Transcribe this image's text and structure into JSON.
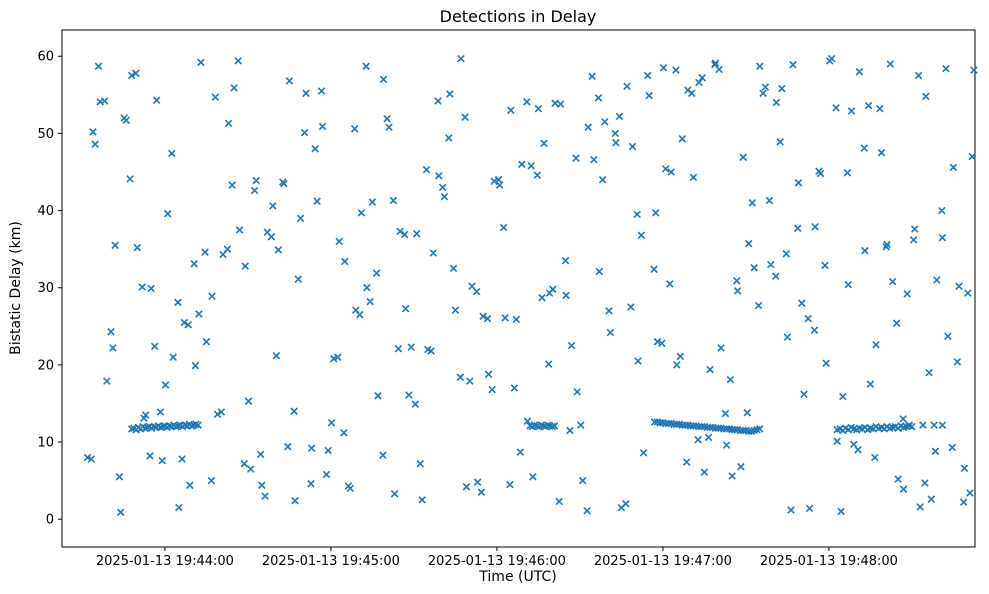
{
  "chart_data": {
    "type": "scatter",
    "title": "Detections in Delay",
    "xlabel": "Time (UTC)",
    "ylabel": "Bistatic Delay (km)",
    "marker": "x",
    "marker_color": "#1f77b4",
    "grid": false,
    "legend": "none",
    "x_units": "seconds after 2025-01-13 19:43:00 UTC",
    "xlim": [
      22.8,
      352.8
    ],
    "ylim": [
      -3.6,
      63.4
    ],
    "xticks": [
      {
        "t": 60,
        "label": "2025-01-13 19:44:00"
      },
      {
        "t": 120,
        "label": "2025-01-13 19:45:00"
      },
      {
        "t": 180,
        "label": "2025-01-13 19:46:00"
      },
      {
        "t": 240,
        "label": "2025-01-13 19:47:00"
      },
      {
        "t": 300,
        "label": "2025-01-13 19:48:00"
      }
    ],
    "yticks": [
      0,
      10,
      20,
      30,
      40,
      50,
      60
    ],
    "points": [
      [
        32,
        8
      ],
      [
        33.4,
        7.8
      ],
      [
        34,
        50.2
      ],
      [
        34.8,
        48.6
      ],
      [
        36,
        58.7
      ],
      [
        36.6,
        54.1
      ],
      [
        38.2,
        54.2
      ],
      [
        39,
        17.9
      ],
      [
        40.5,
        24.3
      ],
      [
        41.2,
        22.2
      ],
      [
        42,
        35.5
      ],
      [
        43.6,
        5.5
      ],
      [
        44,
        0.9
      ],
      [
        45.3,
        52
      ],
      [
        46,
        51.7
      ],
      [
        47.4,
        44.1
      ],
      [
        48,
        57.5
      ],
      [
        49.5,
        57.8
      ],
      [
        50,
        35.2
      ],
      [
        51.8,
        30.1
      ],
      [
        52.4,
        13.1
      ],
      [
        53,
        13.5
      ],
      [
        54.6,
        8.2
      ],
      [
        55,
        29.9
      ],
      [
        56.3,
        22.4
      ],
      [
        57,
        54.3
      ],
      [
        58.4,
        13.9
      ],
      [
        59,
        7.6
      ],
      [
        60.2,
        17.4
      ],
      [
        61,
        39.6
      ],
      [
        62.5,
        47.4
      ],
      [
        63,
        21
      ],
      [
        64.7,
        28.1
      ],
      [
        65,
        1.5
      ],
      [
        66.2,
        7.8
      ],
      [
        67,
        25.5
      ],
      [
        68.4,
        25.2
      ],
      [
        69,
        4.4
      ],
      [
        70.6,
        33.1
      ],
      [
        71,
        19.9
      ],
      [
        72.3,
        26.6
      ],
      [
        73,
        59.2
      ],
      [
        74.5,
        34.6
      ],
      [
        75,
        23
      ],
      [
        76.8,
        5
      ],
      [
        77,
        28.9
      ],
      [
        78.2,
        54.7
      ],
      [
        79,
        13.6
      ],
      [
        80.4,
        13.9
      ],
      [
        81,
        34.3
      ],
      [
        82.6,
        35
      ],
      [
        83,
        51.3
      ],
      [
        84.3,
        43.3
      ],
      [
        85,
        55.9
      ],
      [
        86.5,
        59.4
      ],
      [
        87,
        37.5
      ],
      [
        88.7,
        7.2
      ],
      [
        89,
        32.8
      ],
      [
        90.2,
        15.3
      ],
      [
        91,
        6.5
      ],
      [
        92.4,
        42.6
      ],
      [
        93,
        43.9
      ],
      [
        94.6,
        8.4
      ],
      [
        95,
        4.4
      ],
      [
        96.2,
        3
      ],
      [
        97,
        37.2
      ],
      [
        98.5,
        36.6
      ],
      [
        99,
        40.6
      ],
      [
        100.3,
        21.2
      ],
      [
        101,
        34.9
      ],
      [
        102.6,
        43.7
      ],
      [
        103,
        43.5
      ],
      [
        104.4,
        9.4
      ],
      [
        105,
        56.8
      ],
      [
        106.7,
        14
      ],
      [
        107,
        2.4
      ],
      [
        108.2,
        31.1
      ],
      [
        109,
        39
      ],
      [
        110.5,
        50.1
      ],
      [
        111,
        55.2
      ],
      [
        112.8,
        4.6
      ],
      [
        113,
        9.2
      ],
      [
        114.3,
        48
      ],
      [
        115,
        41.2
      ],
      [
        116.6,
        55.5
      ],
      [
        117,
        50.9
      ],
      [
        118.4,
        5.8
      ],
      [
        119,
        8.9
      ],
      [
        120.2,
        12.5
      ],
      [
        121,
        20.8
      ],
      [
        122.5,
        21
      ],
      [
        123,
        36
      ],
      [
        124.7,
        11.2
      ],
      [
        125,
        33.4
      ],
      [
        126.3,
        4.3
      ],
      [
        127,
        4
      ],
      [
        128.6,
        50.6
      ],
      [
        129,
        27.1
      ],
      [
        130.4,
        26.5
      ],
      [
        131,
        39.7
      ],
      [
        132.7,
        58.7
      ],
      [
        133,
        30
      ],
      [
        134.2,
        28.2
      ],
      [
        135,
        41.1
      ],
      [
        136.5,
        31.9
      ],
      [
        137,
        16
      ],
      [
        138.8,
        8.3
      ],
      [
        139,
        57
      ],
      [
        140.3,
        51.9
      ],
      [
        141,
        50.8
      ],
      [
        142.6,
        41.3
      ],
      [
        143,
        3.3
      ],
      [
        144.4,
        22.1
      ],
      [
        145,
        37.3
      ],
      [
        146.7,
        36.9
      ],
      [
        147,
        27.3
      ],
      [
        148.2,
        16.1
      ],
      [
        149,
        22.3
      ],
      [
        150.5,
        14.9
      ],
      [
        151,
        37
      ],
      [
        152.3,
        7.2
      ],
      [
        153,
        2.5
      ],
      [
        154.6,
        45.3
      ],
      [
        155,
        22
      ],
      [
        156.2,
        21.8
      ],
      [
        157,
        34.5
      ],
      [
        158.7,
        54.2
      ],
      [
        159,
        44.5
      ],
      [
        160.4,
        43
      ],
      [
        161,
        41.8
      ],
      [
        162.6,
        49.4
      ],
      [
        163,
        55.1
      ],
      [
        164.3,
        32.5
      ],
      [
        165,
        27.1
      ],
      [
        166.8,
        18.4
      ],
      [
        167,
        59.7
      ],
      [
        168.5,
        52.1
      ],
      [
        169,
        4.2
      ],
      [
        170.2,
        17.9
      ],
      [
        171,
        30.2
      ],
      [
        172.7,
        29.5
      ],
      [
        173,
        4.8
      ],
      [
        174.4,
        3.5
      ],
      [
        175,
        26.3
      ],
      [
        176.6,
        26
      ],
      [
        177,
        18.8
      ],
      [
        178.3,
        16.8
      ],
      [
        179,
        43.8
      ],
      [
        180.6,
        44
      ],
      [
        181,
        43.3
      ],
      [
        182.4,
        37.8
      ],
      [
        183,
        26.1
      ],
      [
        184.7,
        4.5
      ],
      [
        185,
        53
      ],
      [
        186.3,
        17
      ],
      [
        187,
        25.9
      ],
      [
        188.5,
        8.7
      ],
      [
        189,
        46
      ],
      [
        190.8,
        54.1
      ],
      [
        191,
        12.7
      ],
      [
        192.4,
        45.8
      ],
      [
        193,
        5.5
      ],
      [
        194.6,
        44.6
      ],
      [
        195,
        53.2
      ],
      [
        196.3,
        28.7
      ],
      [
        197,
        48.7
      ],
      [
        198.7,
        20.1
      ],
      [
        199,
        29.3
      ],
      [
        200.2,
        29.8
      ],
      [
        201,
        53.9
      ],
      [
        202.5,
        2.3
      ],
      [
        203,
        53.8
      ],
      [
        204.8,
        33.5
      ],
      [
        205,
        29
      ],
      [
        206.4,
        11.5
      ],
      [
        207,
        22.5
      ],
      [
        208.6,
        46.8
      ],
      [
        209,
        16.5
      ],
      [
        210.3,
        12.2
      ],
      [
        211,
        5
      ],
      [
        212.6,
        1.1
      ],
      [
        213,
        50.8
      ],
      [
        214.4,
        57.4
      ],
      [
        215,
        46.6
      ],
      [
        216.7,
        54.6
      ],
      [
        217,
        32.1
      ],
      [
        218.2,
        44
      ],
      [
        219,
        51.5
      ],
      [
        220.5,
        27
      ],
      [
        221,
        24.2
      ],
      [
        222.8,
        50
      ],
      [
        223,
        48.8
      ],
      [
        224.3,
        52.2
      ],
      [
        225,
        1.5
      ],
      [
        226.6,
        2
      ],
      [
        227,
        56.1
      ],
      [
        228.4,
        27.5
      ],
      [
        229,
        48.3
      ],
      [
        230.7,
        39.5
      ],
      [
        231,
        20.5
      ],
      [
        232.2,
        36.8
      ],
      [
        233,
        8.6
      ],
      [
        234.5,
        57.5
      ],
      [
        235,
        54.9
      ],
      [
        236.8,
        32.4
      ],
      [
        237.4,
        39.7
      ],
      [
        238,
        23
      ],
      [
        239.6,
        22.8
      ],
      [
        240.2,
        58.5
      ],
      [
        241,
        45.4
      ],
      [
        242.5,
        30.5
      ],
      [
        243,
        45
      ],
      [
        244.7,
        58.2
      ],
      [
        245,
        20
      ],
      [
        246.3,
        21.1
      ],
      [
        247,
        49.3
      ],
      [
        248.6,
        7.4
      ],
      [
        249,
        55.6
      ],
      [
        250.4,
        55.2
      ],
      [
        251,
        44.3
      ],
      [
        252.7,
        10.3
      ],
      [
        253,
        56.6
      ],
      [
        254.2,
        57.2
      ],
      [
        255,
        6.1
      ],
      [
        256.5,
        10.6
      ],
      [
        257,
        19.4
      ],
      [
        258.8,
        58.9
      ],
      [
        259,
        59.1
      ],
      [
        260.3,
        58.3
      ],
      [
        261,
        22.2
      ],
      [
        262.6,
        13.7
      ],
      [
        263,
        9.6
      ],
      [
        264.4,
        18.1
      ],
      [
        265,
        5.6
      ],
      [
        266.7,
        30.9
      ],
      [
        267,
        29.6
      ],
      [
        268.2,
        6.8
      ],
      [
        269,
        46.9
      ],
      [
        270.5,
        13.8
      ],
      [
        271,
        35.7
      ],
      [
        272.3,
        41
      ],
      [
        273,
        32.6
      ],
      [
        274.6,
        27.7
      ],
      [
        275,
        58.7
      ],
      [
        276.2,
        55.2
      ],
      [
        277,
        56
      ],
      [
        278.5,
        41.3
      ],
      [
        279,
        33
      ],
      [
        280.8,
        31.5
      ],
      [
        281,
        54
      ],
      [
        282.4,
        48.9
      ],
      [
        283,
        55.8
      ],
      [
        284.6,
        34.4
      ],
      [
        285,
        23.6
      ],
      [
        286.3,
        1.2
      ],
      [
        287,
        58.9
      ],
      [
        288.7,
        37.7
      ],
      [
        289,
        43.6
      ],
      [
        290.2,
        28
      ],
      [
        291,
        16.2
      ],
      [
        292.5,
        26
      ],
      [
        293,
        1.4
      ],
      [
        294.8,
        24.5
      ],
      [
        295,
        37.9
      ],
      [
        296.4,
        45.1
      ],
      [
        297,
        44.8
      ],
      [
        298.6,
        32.9
      ],
      [
        299,
        20.2
      ],
      [
        300.3,
        59.4
      ],
      [
        301,
        59.7
      ],
      [
        302.6,
        53.3
      ],
      [
        303,
        10.1
      ],
      [
        304.4,
        1
      ],
      [
        305,
        15.9
      ],
      [
        306.7,
        44.9
      ],
      [
        307,
        30.4
      ],
      [
        308.2,
        52.9
      ],
      [
        309,
        9.7
      ],
      [
        310.5,
        9
      ],
      [
        311,
        58
      ],
      [
        312.8,
        48.1
      ],
      [
        313,
        34.8
      ],
      [
        314.3,
        53.6
      ],
      [
        315,
        17.5
      ],
      [
        316.6,
        8
      ],
      [
        317,
        22.6
      ],
      [
        318.4,
        53.2
      ],
      [
        319,
        47.5
      ],
      [
        320.7,
        35.3
      ],
      [
        321,
        35.6
      ],
      [
        322.2,
        59
      ],
      [
        323,
        30.8
      ],
      [
        324.5,
        25.4
      ],
      [
        325,
        5.2
      ],
      [
        326.8,
        13
      ],
      [
        327,
        3.9
      ],
      [
        328.3,
        29.2
      ],
      [
        329,
        12.1
      ],
      [
        330.6,
        36.2
      ],
      [
        331,
        37.6
      ],
      [
        332.4,
        57.5
      ],
      [
        333,
        1.6
      ],
      [
        334.7,
        4.7
      ],
      [
        335,
        54.8
      ],
      [
        336.2,
        19
      ],
      [
        337,
        2.6
      ],
      [
        338.5,
        8.8
      ],
      [
        339,
        31
      ],
      [
        340.8,
        40
      ],
      [
        341,
        36.5
      ],
      [
        342.3,
        58.4
      ],
      [
        343,
        23.7
      ],
      [
        344.6,
        9.3
      ],
      [
        345,
        45.6
      ],
      [
        346.4,
        20.4
      ],
      [
        347,
        30.2
      ],
      [
        348.7,
        2.2
      ],
      [
        349,
        6.6
      ],
      [
        350.2,
        29.3
      ],
      [
        351,
        3.4
      ],
      [
        351.8,
        47
      ],
      [
        352.4,
        58.2
      ],
      [
        48,
        11.7
      ],
      [
        48.8,
        11.8
      ],
      [
        49.6,
        11.6
      ],
      [
        50.4,
        11.9
      ],
      [
        51.2,
        11.7
      ],
      [
        52,
        12
      ],
      [
        52.8,
        11.8
      ],
      [
        53.6,
        11.9
      ],
      [
        54.4,
        12
      ],
      [
        55.2,
        11.8
      ],
      [
        56,
        12
      ],
      [
        56.8,
        11.9
      ],
      [
        57.6,
        12.1
      ],
      [
        58.4,
        11.9
      ],
      [
        59.2,
        12
      ],
      [
        60,
        12.1
      ],
      [
        60.8,
        11.9
      ],
      [
        61.6,
        12.1
      ],
      [
        62.4,
        12
      ],
      [
        63.2,
        12.2
      ],
      [
        64,
        12
      ],
      [
        64.8,
        12.1
      ],
      [
        65.6,
        12.2
      ],
      [
        66.4,
        12
      ],
      [
        67.2,
        12.2
      ],
      [
        68,
        12.1
      ],
      [
        68.8,
        12.3
      ],
      [
        69.6,
        12.1
      ],
      [
        70.4,
        12.2
      ],
      [
        71.2,
        12.3
      ],
      [
        72,
        12.2
      ],
      [
        192,
        12.1
      ],
      [
        192.8,
        12
      ],
      [
        193.6,
        12.2
      ],
      [
        194.4,
        12.1
      ],
      [
        195.2,
        12
      ],
      [
        196,
        12.2
      ],
      [
        196.8,
        12.1
      ],
      [
        197.6,
        12
      ],
      [
        198.4,
        12.2
      ],
      [
        199.2,
        12.1
      ],
      [
        200,
        12
      ],
      [
        200.8,
        12.1
      ],
      [
        237,
        12.6
      ],
      [
        238,
        12.6
      ],
      [
        239,
        12.5
      ],
      [
        240,
        12.5
      ],
      [
        241,
        12.4
      ],
      [
        242,
        12.4
      ],
      [
        243,
        12.4
      ],
      [
        244,
        12.3
      ],
      [
        245,
        12.3
      ],
      [
        246,
        12.3
      ],
      [
        247,
        12.2
      ],
      [
        248,
        12.2
      ],
      [
        249,
        12.2
      ],
      [
        250,
        12.1
      ],
      [
        251,
        12.1
      ],
      [
        252,
        12.1
      ],
      [
        253,
        12
      ],
      [
        254,
        12
      ],
      [
        255,
        12
      ],
      [
        256,
        11.9
      ],
      [
        257,
        11.9
      ],
      [
        258,
        11.9
      ],
      [
        259,
        11.8
      ],
      [
        260,
        11.8
      ],
      [
        261,
        11.8
      ],
      [
        262,
        11.7
      ],
      [
        263,
        11.7
      ],
      [
        264,
        11.7
      ],
      [
        265,
        11.6
      ],
      [
        266,
        11.6
      ],
      [
        267,
        11.6
      ],
      [
        268,
        11.5
      ],
      [
        269,
        11.5
      ],
      [
        270,
        11.5
      ],
      [
        271,
        11.4
      ],
      [
        272,
        11.4
      ],
      [
        273,
        11.5
      ],
      [
        274,
        11.6
      ],
      [
        275,
        11.7
      ],
      [
        303,
        11.6
      ],
      [
        304,
        11.7
      ],
      [
        305,
        11.5
      ],
      [
        306,
        11.8
      ],
      [
        307,
        11.6
      ],
      [
        308,
        11.9
      ],
      [
        309,
        11.7
      ],
      [
        310,
        11.6
      ],
      [
        311,
        11.8
      ],
      [
        312,
        11.7
      ],
      [
        313,
        11.9
      ],
      [
        314,
        11.6
      ],
      [
        315,
        11.8
      ],
      [
        316,
        11.7
      ],
      [
        317,
        12
      ],
      [
        318,
        11.8
      ],
      [
        319,
        11.9
      ],
      [
        320,
        11.7
      ],
      [
        321,
        12
      ],
      [
        322,
        11.8
      ],
      [
        323,
        11.9
      ],
      [
        324,
        12
      ],
      [
        325,
        11.8
      ],
      [
        326,
        12.1
      ],
      [
        327,
        11.9
      ],
      [
        328,
        12
      ],
      [
        329,
        12.2
      ],
      [
        330,
        12
      ],
      [
        334,
        12.2
      ],
      [
        338,
        12.2
      ],
      [
        341,
        12.2
      ]
    ]
  }
}
